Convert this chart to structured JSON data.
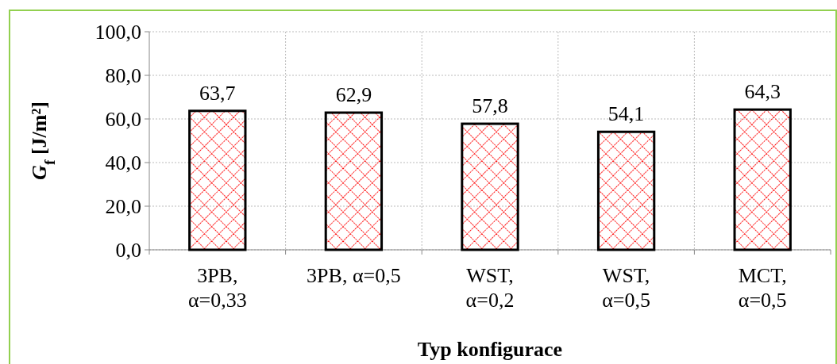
{
  "chart_data": {
    "type": "bar",
    "xlabel": "Typ konfigurace",
    "ylabel": "G$_{f}$ [J/m²]",
    "categories": [
      "3PB, α=0,33",
      "3PB, α=0,5",
      "WST, α=0,2",
      "WST, α=0,5",
      "MCT, α=0,5"
    ],
    "values": [
      63.7,
      62.9,
      57.8,
      54.1,
      64.3
    ],
    "value_labels": [
      "63,7",
      "62,9",
      "57,8",
      "54,1",
      "64,3"
    ],
    "color": "#ff0000",
    "ylim": [
      0,
      100
    ],
    "yticks": [
      {
        "value": 0,
        "label": "0,0"
      },
      {
        "value": 20,
        "label": "20,0"
      },
      {
        "value": 40,
        "label": "40,0"
      },
      {
        "value": 60,
        "label": "60,0"
      },
      {
        "value": 80,
        "label": "80,0"
      },
      {
        "value": 100,
        "label": "100,0"
      }
    ],
    "grid": true
  }
}
